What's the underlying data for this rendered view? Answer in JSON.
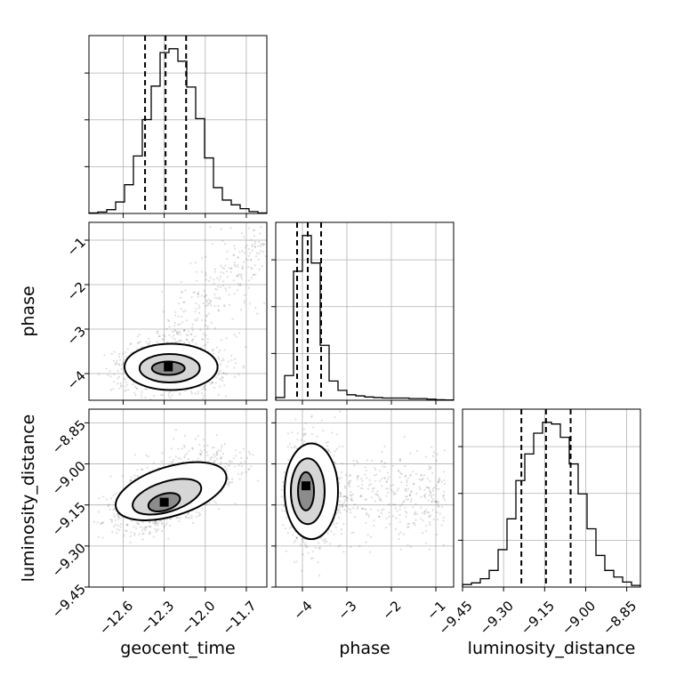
{
  "chart_data": {
    "type": "corner",
    "parameters": [
      "geocent_time",
      "phase",
      "luminosity_distance"
    ],
    "grid": true,
    "axes": {
      "geocent_time": {
        "range": [
          -12.85,
          -11.55
        ],
        "ticks": [
          -12.6,
          -12.3,
          -12.0,
          -11.7
        ],
        "tick_labels": [
          "−12.6",
          "−12.3",
          "−12.0",
          "−11.7"
        ]
      },
      "phase": {
        "range": [
          -4.6,
          -0.6
        ],
        "ticks": [
          -4,
          -3,
          -2,
          -1
        ],
        "tick_labels": [
          "−4",
          "−3",
          "−2",
          "−1"
        ]
      },
      "luminosity_distance": {
        "range": [
          -9.45,
          -8.8
        ],
        "ticks": [
          -9.45,
          -9.3,
          -9.15,
          -9.0,
          -8.85
        ],
        "tick_labels": [
          "−9.45",
          "−9.30",
          "−9.15",
          "−9.00",
          "−8.85"
        ]
      }
    },
    "histograms": [
      {
        "parameter": "geocent_time",
        "bin_edges": [
          -12.85,
          -12.785,
          -12.72,
          -12.655,
          -12.59,
          -12.525,
          -12.46,
          -12.395,
          -12.33,
          -12.265,
          -12.2,
          -12.135,
          -12.07,
          -12.005,
          -11.94,
          -11.875,
          -11.81,
          -11.745,
          -11.68,
          -11.615,
          -11.55
        ],
        "counts": [
          0.5,
          1.5,
          4,
          12,
          30,
          60,
          98,
          133,
          168,
          172,
          159,
          132,
          99,
          58,
          27,
          14,
          9,
          5,
          2,
          0.5
        ],
        "quantiles": [
          -12.44,
          -12.29,
          -12.14
        ]
      },
      {
        "parameter": "phase",
        "bin_edges": [
          -4.6,
          -4.4,
          -4.2,
          -4.0,
          -3.8,
          -3.6,
          -3.4,
          -3.2,
          -3.0,
          -2.8,
          -2.6,
          -2.4,
          -2.2,
          -2.0,
          -1.8,
          -1.6,
          -1.4,
          -1.2,
          -1.0,
          -0.8,
          -0.6
        ],
        "counts": [
          5,
          45,
          235,
          300,
          250,
          100,
          35,
          18,
          10,
          8,
          6,
          5,
          4,
          4,
          4,
          3,
          3,
          2,
          1,
          0.5
        ],
        "quantiles": [
          -4.12,
          -3.88,
          -3.58
        ]
      },
      {
        "parameter": "luminosity_distance",
        "bin_edges": [
          -9.45,
          -9.4175,
          -9.385,
          -9.3525,
          -9.32,
          -9.2875,
          -9.255,
          -9.2225,
          -9.19,
          -9.1575,
          -9.125,
          -9.0925,
          -9.06,
          -9.0275,
          -8.995,
          -8.9625,
          -8.93,
          -8.8975,
          -8.865,
          -8.8325,
          -8.8
        ],
        "counts": [
          3,
          5,
          10,
          20,
          45,
          82,
          128,
          160,
          185,
          198,
          196,
          180,
          148,
          112,
          70,
          38,
          20,
          12,
          6,
          2
        ],
        "quantiles": [
          -9.235,
          -9.145,
          -9.055
        ]
      }
    ],
    "pairs": [
      {
        "x": "geocent_time",
        "y": "phase",
        "density_peak": [
          -12.27,
          -3.85
        ],
        "contours": [
          {
            "center": [
              -12.25,
              -3.85
            ],
            "radii": [
              0.34,
              0.52
            ],
            "angle": 0
          },
          {
            "center": [
              -12.26,
              -3.88
            ],
            "radii": [
              0.22,
              0.32
            ],
            "angle": 0
          },
          {
            "center": [
              -12.27,
              -3.88
            ],
            "radii": [
              0.12,
              0.15
            ],
            "angle": 0
          }
        ]
      },
      {
        "x": "geocent_time",
        "y": "luminosity_distance",
        "density_peak": [
          -12.3,
          -9.14
        ],
        "contours": [
          {
            "center": [
              -12.25,
              -9.1
            ],
            "radii": [
              0.42,
              0.09
            ],
            "angle": 0.1
          },
          {
            "center": [
              -12.28,
              -9.12
            ],
            "radii": [
              0.26,
              0.055
            ],
            "angle": 0.1
          },
          {
            "center": [
              -12.3,
              -9.14
            ],
            "radii": [
              0.12,
              0.03
            ],
            "angle": 0.1
          }
        ]
      },
      {
        "x": "phase",
        "y": "luminosity_distance",
        "density_peak": [
          -3.92,
          -9.08
        ],
        "contours": [
          {
            "center": [
              -3.8,
              -9.1
            ],
            "radii": [
              0.6,
              0.175
            ],
            "angle": 0
          },
          {
            "center": [
              -3.88,
              -9.1
            ],
            "radii": [
              0.38,
              0.12
            ],
            "angle": 0
          },
          {
            "center": [
              -3.92,
              -9.1
            ],
            "radii": [
              0.18,
              0.07
            ],
            "angle": 0
          }
        ]
      }
    ]
  }
}
